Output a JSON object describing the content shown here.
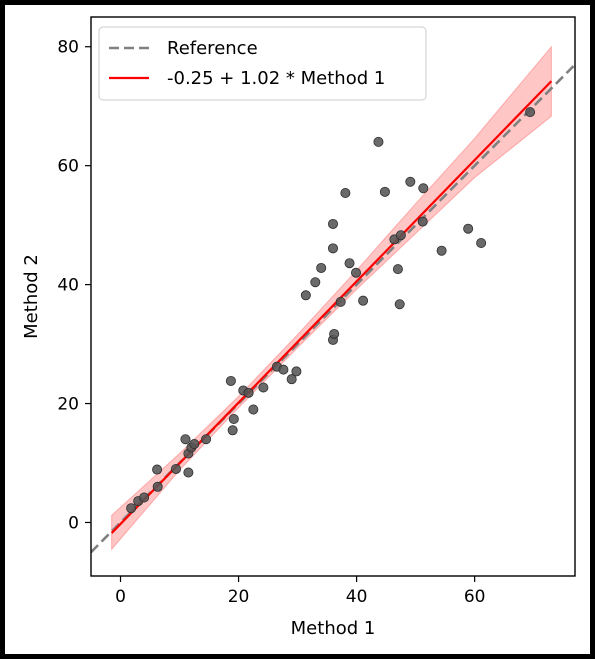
{
  "chart_data": {
    "type": "scatter",
    "title": "",
    "xlabel": "Method 1",
    "ylabel": "Method 2",
    "xlim": [
      -5,
      77
    ],
    "ylim": [
      -9,
      85
    ],
    "xticks": [
      0,
      20,
      40,
      60
    ],
    "yticks": [
      0,
      20,
      40,
      60,
      80
    ],
    "grid": false,
    "legend_position": "top-left",
    "legend": [
      {
        "label": "Reference",
        "color": "#808080",
        "style": "dashed"
      },
      {
        "label": "-0.25 + 1.02 * Method 1",
        "color": "#ff0000",
        "style": "solid"
      }
    ],
    "reference_line": {
      "name": "Reference",
      "intercept": 0,
      "slope": 1,
      "color": "#808080"
    },
    "regression": {
      "name": "-0.25 + 1.02 * Method 1",
      "intercept": -0.25,
      "slope": 1.02,
      "x_range": [
        -1.5,
        73
      ],
      "color": "#ff0000",
      "band_color": "#ffb3b3",
      "band": [
        {
          "x": -1.5,
          "lower": -4.5,
          "upper": 1.2
        },
        {
          "x": 10,
          "lower": 8.8,
          "upper": 11.6
        },
        {
          "x": 20,
          "lower": 19.3,
          "upper": 21.2
        },
        {
          "x": 30,
          "lower": 29.4,
          "upper": 31.6
        },
        {
          "x": 40,
          "lower": 39.2,
          "upper": 42.4
        },
        {
          "x": 50,
          "lower": 48.6,
          "upper": 53.6
        },
        {
          "x": 60,
          "lower": 58.0,
          "upper": 64.6
        },
        {
          "x": 73,
          "lower": 68.3,
          "upper": 80.0
        }
      ]
    },
    "series": [
      {
        "color": "#555555",
        "points": [
          [
            1.8,
            2.4
          ],
          [
            3.0,
            3.6
          ],
          [
            4.0,
            4.2
          ],
          [
            6.3,
            6.0
          ],
          [
            6.2,
            8.9
          ],
          [
            9.4,
            9.0
          ],
          [
            11.0,
            14.0
          ],
          [
            11.5,
            8.4
          ],
          [
            11.5,
            11.6
          ],
          [
            12.0,
            12.6
          ],
          [
            12.5,
            13.2
          ],
          [
            14.5,
            14.0
          ],
          [
            18.7,
            23.8
          ],
          [
            19.0,
            15.5
          ],
          [
            19.2,
            17.4
          ],
          [
            20.8,
            22.2
          ],
          [
            21.7,
            21.8
          ],
          [
            22.5,
            19.0
          ],
          [
            24.2,
            22.7
          ],
          [
            26.5,
            26.2
          ],
          [
            27.6,
            25.7
          ],
          [
            29.0,
            24.1
          ],
          [
            29.8,
            25.4
          ],
          [
            31.4,
            38.2
          ],
          [
            33.0,
            40.4
          ],
          [
            34.0,
            42.8
          ],
          [
            36.0,
            50.2
          ],
          [
            36.0,
            46.1
          ],
          [
            36.0,
            30.7
          ],
          [
            36.2,
            31.7
          ],
          [
            37.3,
            37.1
          ],
          [
            38.1,
            55.4
          ],
          [
            38.8,
            43.6
          ],
          [
            39.9,
            42.0
          ],
          [
            41.1,
            37.3
          ],
          [
            43.7,
            64.0
          ],
          [
            44.8,
            55.6
          ],
          [
            46.4,
            47.6
          ],
          [
            47.0,
            42.6
          ],
          [
            47.3,
            36.7
          ],
          [
            47.5,
            48.3
          ],
          [
            49.1,
            57.3
          ],
          [
            51.2,
            50.6
          ],
          [
            51.3,
            56.2
          ],
          [
            54.4,
            45.7
          ],
          [
            58.9,
            49.4
          ],
          [
            61.1,
            47.0
          ],
          [
            69.4,
            69.0
          ]
        ]
      }
    ]
  }
}
